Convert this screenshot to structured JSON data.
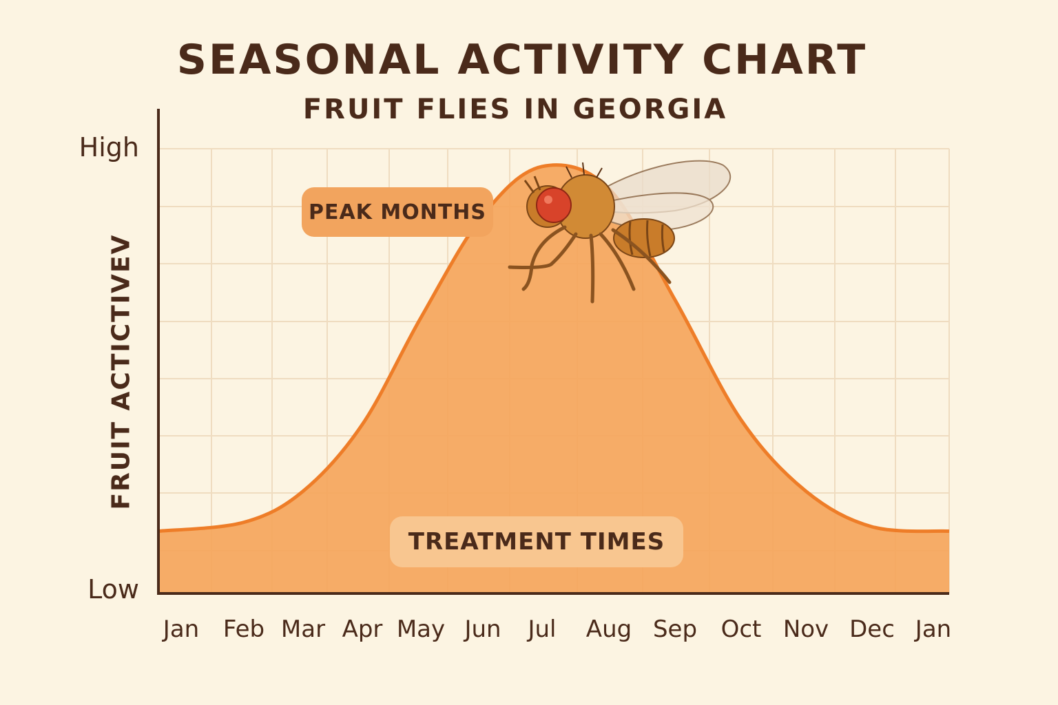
{
  "header": {
    "title": "SEASONAL ACTIVITY CHART",
    "subtitle": "FRUIT FLIES IN GEORGIA"
  },
  "annotations": {
    "peak": "PEAK MONTHS",
    "treatment": "TREATMENT TIMES"
  },
  "illustration": {
    "icon": "fruit-fly-icon"
  },
  "colors": {
    "background": "#fcf4e2",
    "grid": "#efdcc0",
    "area_fill": "#f5a55c",
    "area_line": "#ee7d28",
    "axis": "#4a2a1a",
    "text": "#4a2a1a"
  },
  "chart_data": {
    "type": "area",
    "title": "SEASONAL ACTIVITY CHART",
    "subtitle": "FRUIT FLIES IN GEORGIA",
    "ylabel": "FRUIT ACTICTIVEV",
    "xlabel": "",
    "categories": [
      "Jan",
      "Feb",
      "Mar",
      "Apr",
      "May",
      "Jun",
      "Jul",
      "Aug",
      "Sep",
      "Oct",
      "Nov",
      "Dec",
      "Jan"
    ],
    "y_tick_labels": [
      "Low",
      "High"
    ],
    "ylim": [
      0,
      10
    ],
    "grid": true,
    "legend": "none",
    "values": [
      1.4,
      1.6,
      2.3,
      3.8,
      6.2,
      8.5,
      9.6,
      9.1,
      6.6,
      3.9,
      2.3,
      1.5,
      1.4
    ]
  }
}
